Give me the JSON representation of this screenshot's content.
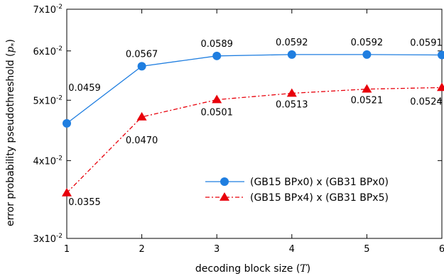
{
  "chart_data": {
    "type": "line",
    "xlabel": "decoding block size (",
    "xlabel_var": "T",
    "xlabel_close": ")",
    "ylabel": "error probability pseudothreshold (",
    "ylabel_var": "p",
    "ylabel_sub": "*",
    "ylabel_close": ")",
    "y_scale": "log",
    "xlim": [
      1,
      6
    ],
    "ylim": [
      0.03,
      0.07
    ],
    "x": [
      1,
      2,
      3,
      4,
      5,
      6
    ],
    "x_ticks": [
      "1",
      "2",
      "3",
      "4",
      "5",
      "6"
    ],
    "y_ticks": [
      {
        "value": 0.03,
        "mantissa": "3x10",
        "exponent": "-2"
      },
      {
        "value": 0.04,
        "mantissa": "4x10",
        "exponent": "-2"
      },
      {
        "value": 0.05,
        "mantissa": "5x10",
        "exponent": "-2"
      },
      {
        "value": 0.06,
        "mantissa": "6x10",
        "exponent": "-2"
      },
      {
        "value": 0.07,
        "mantissa": "7x10",
        "exponent": "-2"
      }
    ],
    "grid": false,
    "legend_position": "lower-right",
    "series": [
      {
        "name": "(GB15 BPx0) x (GB31 BPx0)",
        "color": "#1f7ee0",
        "marker": "circle",
        "line_style": "solid",
        "values": [
          0.0459,
          0.0567,
          0.0589,
          0.0592,
          0.0592,
          0.0591
        ],
        "labels": [
          "0.0459",
          "0.0567",
          "0.0589",
          "0.0592",
          "0.0592",
          "0.0591"
        ]
      },
      {
        "name": "(GB15 BPx4) x (GB31 BPx5)",
        "color": "#e8000b",
        "marker": "triangle",
        "line_style": "dashdot",
        "values": [
          0.0355,
          0.047,
          0.0501,
          0.0513,
          0.0521,
          0.0524
        ],
        "labels": [
          "0.0355",
          "0.0470",
          "0.0501",
          "0.0513",
          "0.0521",
          "0.0524"
        ]
      }
    ]
  }
}
